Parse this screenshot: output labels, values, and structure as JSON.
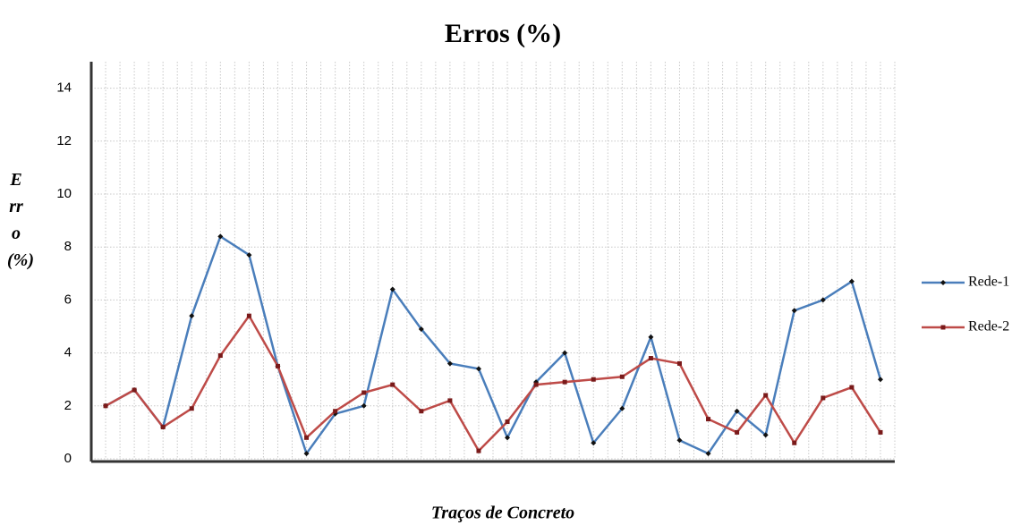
{
  "chart_data": {
    "type": "line",
    "title": "Erros (%)",
    "x_label": "Traços de Concreto",
    "y_label": "Erro (%)",
    "categories": [
      null,
      null,
      null,
      null,
      null,
      null,
      null,
      null,
      null,
      null,
      null,
      null,
      null,
      null,
      null,
      null,
      null,
      null,
      null,
      null,
      null,
      null,
      null,
      null,
      null,
      null,
      null,
      null
    ],
    "series": [
      {
        "name": "Rede-1",
        "color": "#4a7ebb",
        "marker": "diamond",
        "values": [
          2.0,
          2.6,
          1.2,
          5.4,
          8.4,
          7.7,
          3.5,
          0.2,
          1.7,
          2.0,
          6.4,
          4.9,
          3.6,
          3.4,
          0.8,
          2.9,
          4.0,
          0.6,
          1.9,
          4.6,
          0.7,
          0.2,
          1.8,
          0.9,
          5.6,
          6.0,
          6.7,
          3.0
        ]
      },
      {
        "name": "Rede-2",
        "color": "#be4b48",
        "marker": "square",
        "values": [
          2.0,
          2.6,
          1.2,
          1.9,
          3.9,
          5.4,
          3.5,
          0.8,
          1.8,
          2.5,
          2.8,
          1.8,
          2.2,
          0.3,
          1.4,
          2.8,
          2.9,
          3.0,
          3.1,
          3.8,
          3.6,
          1.5,
          1.0,
          2.4,
          0.6,
          2.3,
          2.7,
          1.0
        ]
      }
    ],
    "ylim": [
      0,
      15
    ],
    "yticks": [
      0,
      2,
      4,
      6,
      8,
      10,
      12,
      14
    ],
    "grid": true,
    "legend": "right"
  }
}
